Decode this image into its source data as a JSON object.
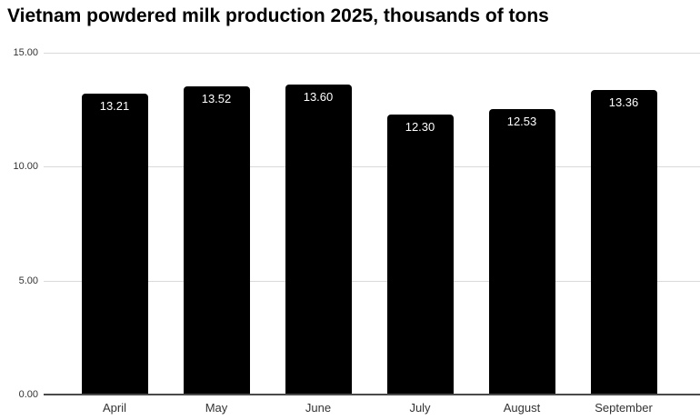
{
  "chart_data": {
    "type": "bar",
    "title": "Vietnam powdered milk production 2025, thousands of tons",
    "categories": [
      "April",
      "May",
      "June",
      "July",
      "August",
      "September"
    ],
    "values": [
      13.21,
      13.52,
      13.6,
      12.3,
      12.53,
      13.36
    ],
    "value_labels": [
      "13.21",
      "13.52",
      "13.60",
      "12.30",
      "12.53",
      "13.36"
    ],
    "xlabel": "",
    "ylabel": "",
    "ylim": [
      0,
      15
    ],
    "yticks": [
      {
        "value": 0,
        "label": "0.00"
      },
      {
        "value": 5,
        "label": "5.00"
      },
      {
        "value": 10,
        "label": "10.00"
      },
      {
        "value": 15,
        "label": "15.00"
      }
    ],
    "grid": true,
    "legend": "none",
    "colors": {
      "bar": "#000000",
      "bar_label": "#ffffff",
      "gridline": "#d9d9d9",
      "axis_line": "#4a4a4a",
      "tick_label": "#333333",
      "title": "#000000",
      "background": "#ffffff"
    }
  }
}
